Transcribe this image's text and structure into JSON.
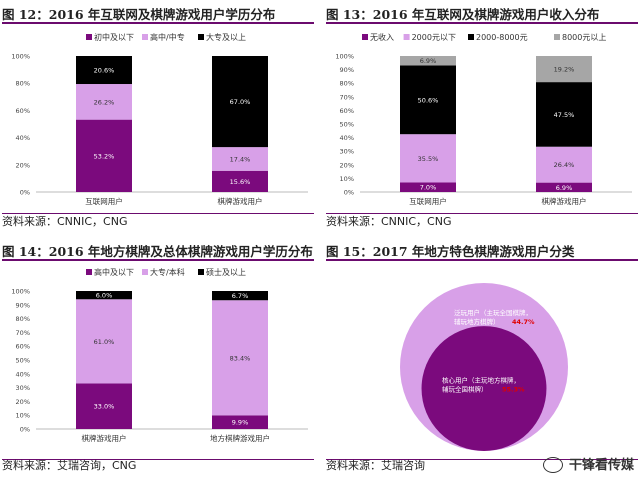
{
  "panels": [
    {
      "title": "图 12：2016 年互联网及棋牌游戏用户学历分布",
      "source": "资料来源：CNNIC，CNG"
    },
    {
      "title": "图 13：2016 年互联网及棋牌游戏用户收入分布",
      "source": "资料来源：CNNIC，CNG"
    },
    {
      "title": "图 14：2016 年地方棋牌及总体棋牌游戏用户学历分布",
      "source": "资料来源：艾瑞咨询，CNG"
    },
    {
      "title": "图 15：2017 年地方特色棋牌游戏用户分类",
      "source": "资料来源：艾瑞咨询"
    }
  ],
  "watermark": "干锋看传媒",
  "chart_data": [
    {
      "type": "bar",
      "stacked": true,
      "title": "图 12：2016 年互联网及棋牌游戏用户学历分布",
      "categories": [
        "互联网用户",
        "棋牌游戏用户"
      ],
      "ylim": [
        0,
        100
      ],
      "y_ticks": [
        "0%",
        "20%",
        "40%",
        "60%",
        "80%",
        "100%"
      ],
      "legend_position": "top",
      "series": [
        {
          "name": "初中及以下",
          "values": [
            53.2,
            15.6
          ],
          "labels": [
            "53.2%",
            "15.6%"
          ],
          "color": "#7b0a7d",
          "text_color": "#ffffff"
        },
        {
          "name": "高中/中专",
          "values": [
            26.2,
            17.4
          ],
          "labels": [
            "26.2%",
            "17.4%"
          ],
          "color": "#d8a0e8",
          "text_color": "#333333"
        },
        {
          "name": "大专及以上",
          "values": [
            20.6,
            67.0
          ],
          "labels": [
            "20.6%",
            "67.0%"
          ],
          "color": "#000000",
          "text_color": "#ffffff"
        }
      ]
    },
    {
      "type": "bar",
      "stacked": true,
      "title": "图 13：2016 年互联网及棋牌游戏用户收入分布",
      "categories": [
        "互联网用户",
        "棋牌游戏用户"
      ],
      "ylim": [
        0,
        100
      ],
      "y_ticks": [
        "0%",
        "10%",
        "20%",
        "30%",
        "40%",
        "50%",
        "60%",
        "70%",
        "80%",
        "90%",
        "100%"
      ],
      "legend_position": "top",
      "series": [
        {
          "name": "无收入",
          "values": [
            7.0,
            6.9
          ],
          "labels": [
            "7.0%",
            "6.9%"
          ],
          "color": "#7b0a7d",
          "text_color": "#ffffff"
        },
        {
          "name": "2000元以下",
          "values": [
            35.5,
            26.4
          ],
          "labels": [
            "35.5%",
            "26.4%"
          ],
          "color": "#d8a0e8",
          "text_color": "#333333"
        },
        {
          "name": "2000-8000元",
          "values": [
            50.6,
            47.5
          ],
          "labels": [
            "50.6%",
            "47.5%"
          ],
          "color": "#000000",
          "text_color": "#ffffff"
        },
        {
          "name": "8000元以上",
          "values": [
            6.9,
            19.2
          ],
          "labels": [
            "6.9%",
            "19.2%"
          ],
          "color": "#a6a6a6",
          "text_color": "#333333"
        }
      ]
    },
    {
      "type": "bar",
      "stacked": true,
      "title": "图 14：2016 年地方棋牌及总体棋牌游戏用户学历分布",
      "categories": [
        "棋牌游戏用户",
        "地方棋牌游戏用户"
      ],
      "ylim": [
        0,
        100
      ],
      "y_ticks": [
        "0%",
        "10%",
        "20%",
        "30%",
        "40%",
        "50%",
        "60%",
        "70%",
        "80%",
        "90%",
        "100%"
      ],
      "legend_position": "top",
      "series": [
        {
          "name": "高中及以下",
          "values": [
            33.0,
            9.9
          ],
          "labels": [
            "33.0%",
            "9.9%"
          ],
          "color": "#7b0a7d",
          "text_color": "#ffffff"
        },
        {
          "name": "大专/本科",
          "values": [
            61.0,
            83.4
          ],
          "labels": [
            "61.0%",
            "83.4%"
          ],
          "color": "#d8a0e8",
          "text_color": "#333333"
        },
        {
          "name": "硕士及以上",
          "values": [
            6.0,
            6.7
          ],
          "labels": [
            "6.0%",
            "6.7%"
          ],
          "color": "#000000",
          "text_color": "#ffffff"
        }
      ]
    },
    {
      "type": "pie",
      "subtype": "nested-circles",
      "title": "图 15：2017 年地方特色棋牌游戏用户分类",
      "series": [
        {
          "name": "泛玩用户（主玩全国棋牌，辅玩地方棋牌）",
          "lines": [
            "泛玩用户（主玩全国棋牌，",
            "辅玩地方棋牌）"
          ],
          "value": 44.7,
          "label": "44.7%",
          "color": "#d8a0e8",
          "text_color": "#ffffff",
          "value_color": "#e00000"
        },
        {
          "name": "核心用户（主玩地方棋牌，辅玩全国棋牌）",
          "lines": [
            "核心用户（主玩地方棋牌，",
            "辅玩全国棋牌）"
          ],
          "value": 55.3,
          "label": "55.3%",
          "color": "#7b0a7d",
          "text_color": "#ffffff",
          "value_color": "#e00000"
        }
      ]
    }
  ]
}
